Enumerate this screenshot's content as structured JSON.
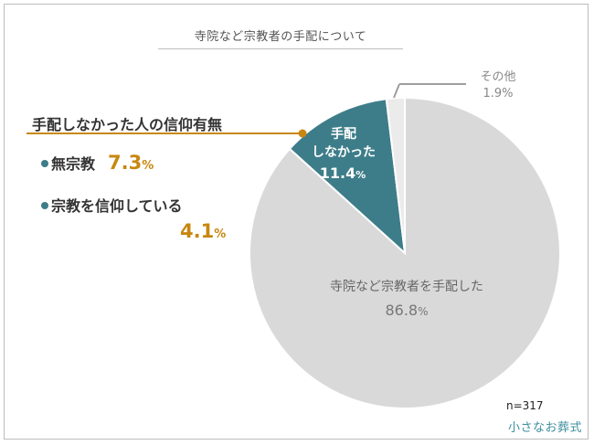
{
  "chart_data": {
    "type": "pie",
    "title": "寺院など宗教者の手配について",
    "sample": "n=317",
    "slices": [
      {
        "label": "寺院など宗教者を手配した",
        "value": 86.8,
        "color": "#d9d9d9"
      },
      {
        "label_lines": [
          "手配",
          "しなかった"
        ],
        "value": 11.4,
        "color": "#3d7d89"
      },
      {
        "label": "その他",
        "value": 1.9,
        "color": "#ebebeb"
      }
    ],
    "breakdown": {
      "heading": "手配しなかった人の信仰有無",
      "items": [
        {
          "label": "無宗教",
          "value": "7.3"
        },
        {
          "label": "宗教を信仰している",
          "value": "4.1"
        }
      ]
    },
    "percent_sign": "%"
  },
  "logo_text": "小さなお葬式"
}
